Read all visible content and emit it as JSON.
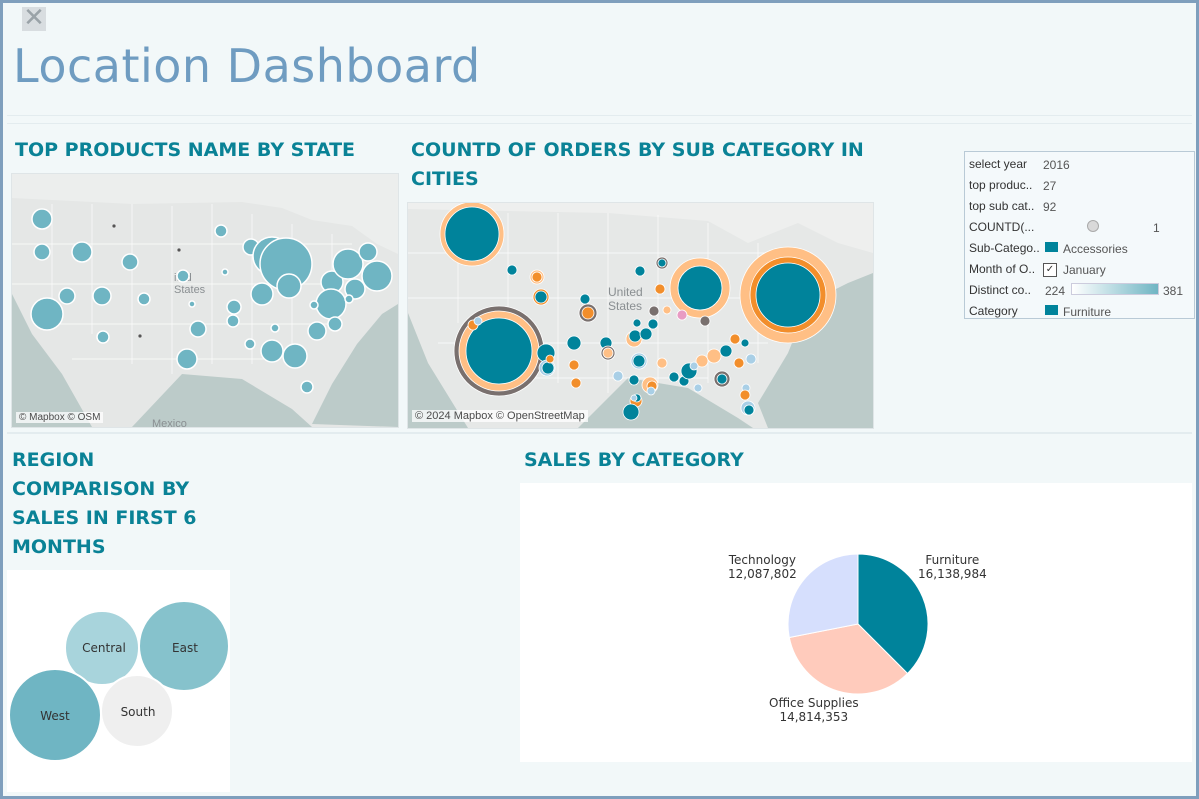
{
  "header": {
    "close_glyph": "✕",
    "title": "Location Dashboard"
  },
  "sections": {
    "top_products_title": "TOP PRODUCTS NAME BY STATE",
    "orders_title_line1": "COUNTD OF ORDERS BY SUB CATEGORY IN",
    "orders_title_line2": "CITIES",
    "region_title_line1": "REGION",
    "region_title_line2": "COMPARISON BY",
    "region_title_line3": "SALES IN FIRST 6",
    "region_title_line4": "MONTHS",
    "sales_title": "SALES BY CATEGORY"
  },
  "map1": {
    "attribution": "© Mapbox © OSM",
    "label_states": "ited\nStates",
    "label_states_a": "ited",
    "label_states_b": "States",
    "label_mexico": "Mexico",
    "bubble_color": "#6fb5c3"
  },
  "map2": {
    "attribution": "© 2024 Mapbox © OpenStreetMap",
    "label_states_a": "United",
    "label_states_b": "States",
    "colors": {
      "teal": "#00839b",
      "orange": "#f28e2b",
      "peach": "#ffbf85",
      "gray": "#79706e",
      "lightblue": "#a9cfe6"
    }
  },
  "filters": {
    "rows": [
      {
        "label": "select year",
        "value": "2016"
      },
      {
        "label": "top produc..",
        "value": "27"
      },
      {
        "label": "top sub cat..",
        "value": "92"
      },
      {
        "label": "COUNTD(...",
        "value": "1"
      },
      {
        "label": "Sub-Catego..",
        "value": "Accessories"
      },
      {
        "label": "Month of O..",
        "value": "January"
      },
      {
        "label": "Distinct co..",
        "value_min": "224",
        "value_max": "381"
      },
      {
        "label": "Category",
        "value": "Furniture"
      }
    ],
    "legend_color": "#00839b"
  },
  "region_bubbles": [
    {
      "name": "Central",
      "color": "#a8d4dc"
    },
    {
      "name": "East",
      "color": "#86c2cc"
    },
    {
      "name": "West",
      "color": "#6fb5c3"
    },
    {
      "name": "South",
      "color": "#efefef"
    }
  ],
  "chart_data": {
    "type": "pie",
    "title": "SALES BY CATEGORY",
    "categories": [
      "Furniture",
      "Office Supplies",
      "Technology"
    ],
    "values": [
      16138984,
      14814353,
      12087802
    ],
    "labels": [
      "16,138,984",
      "14,814,353",
      "12,087,802"
    ],
    "colors": [
      "#00839b",
      "#ffcbbc",
      "#d6dffd"
    ]
  }
}
